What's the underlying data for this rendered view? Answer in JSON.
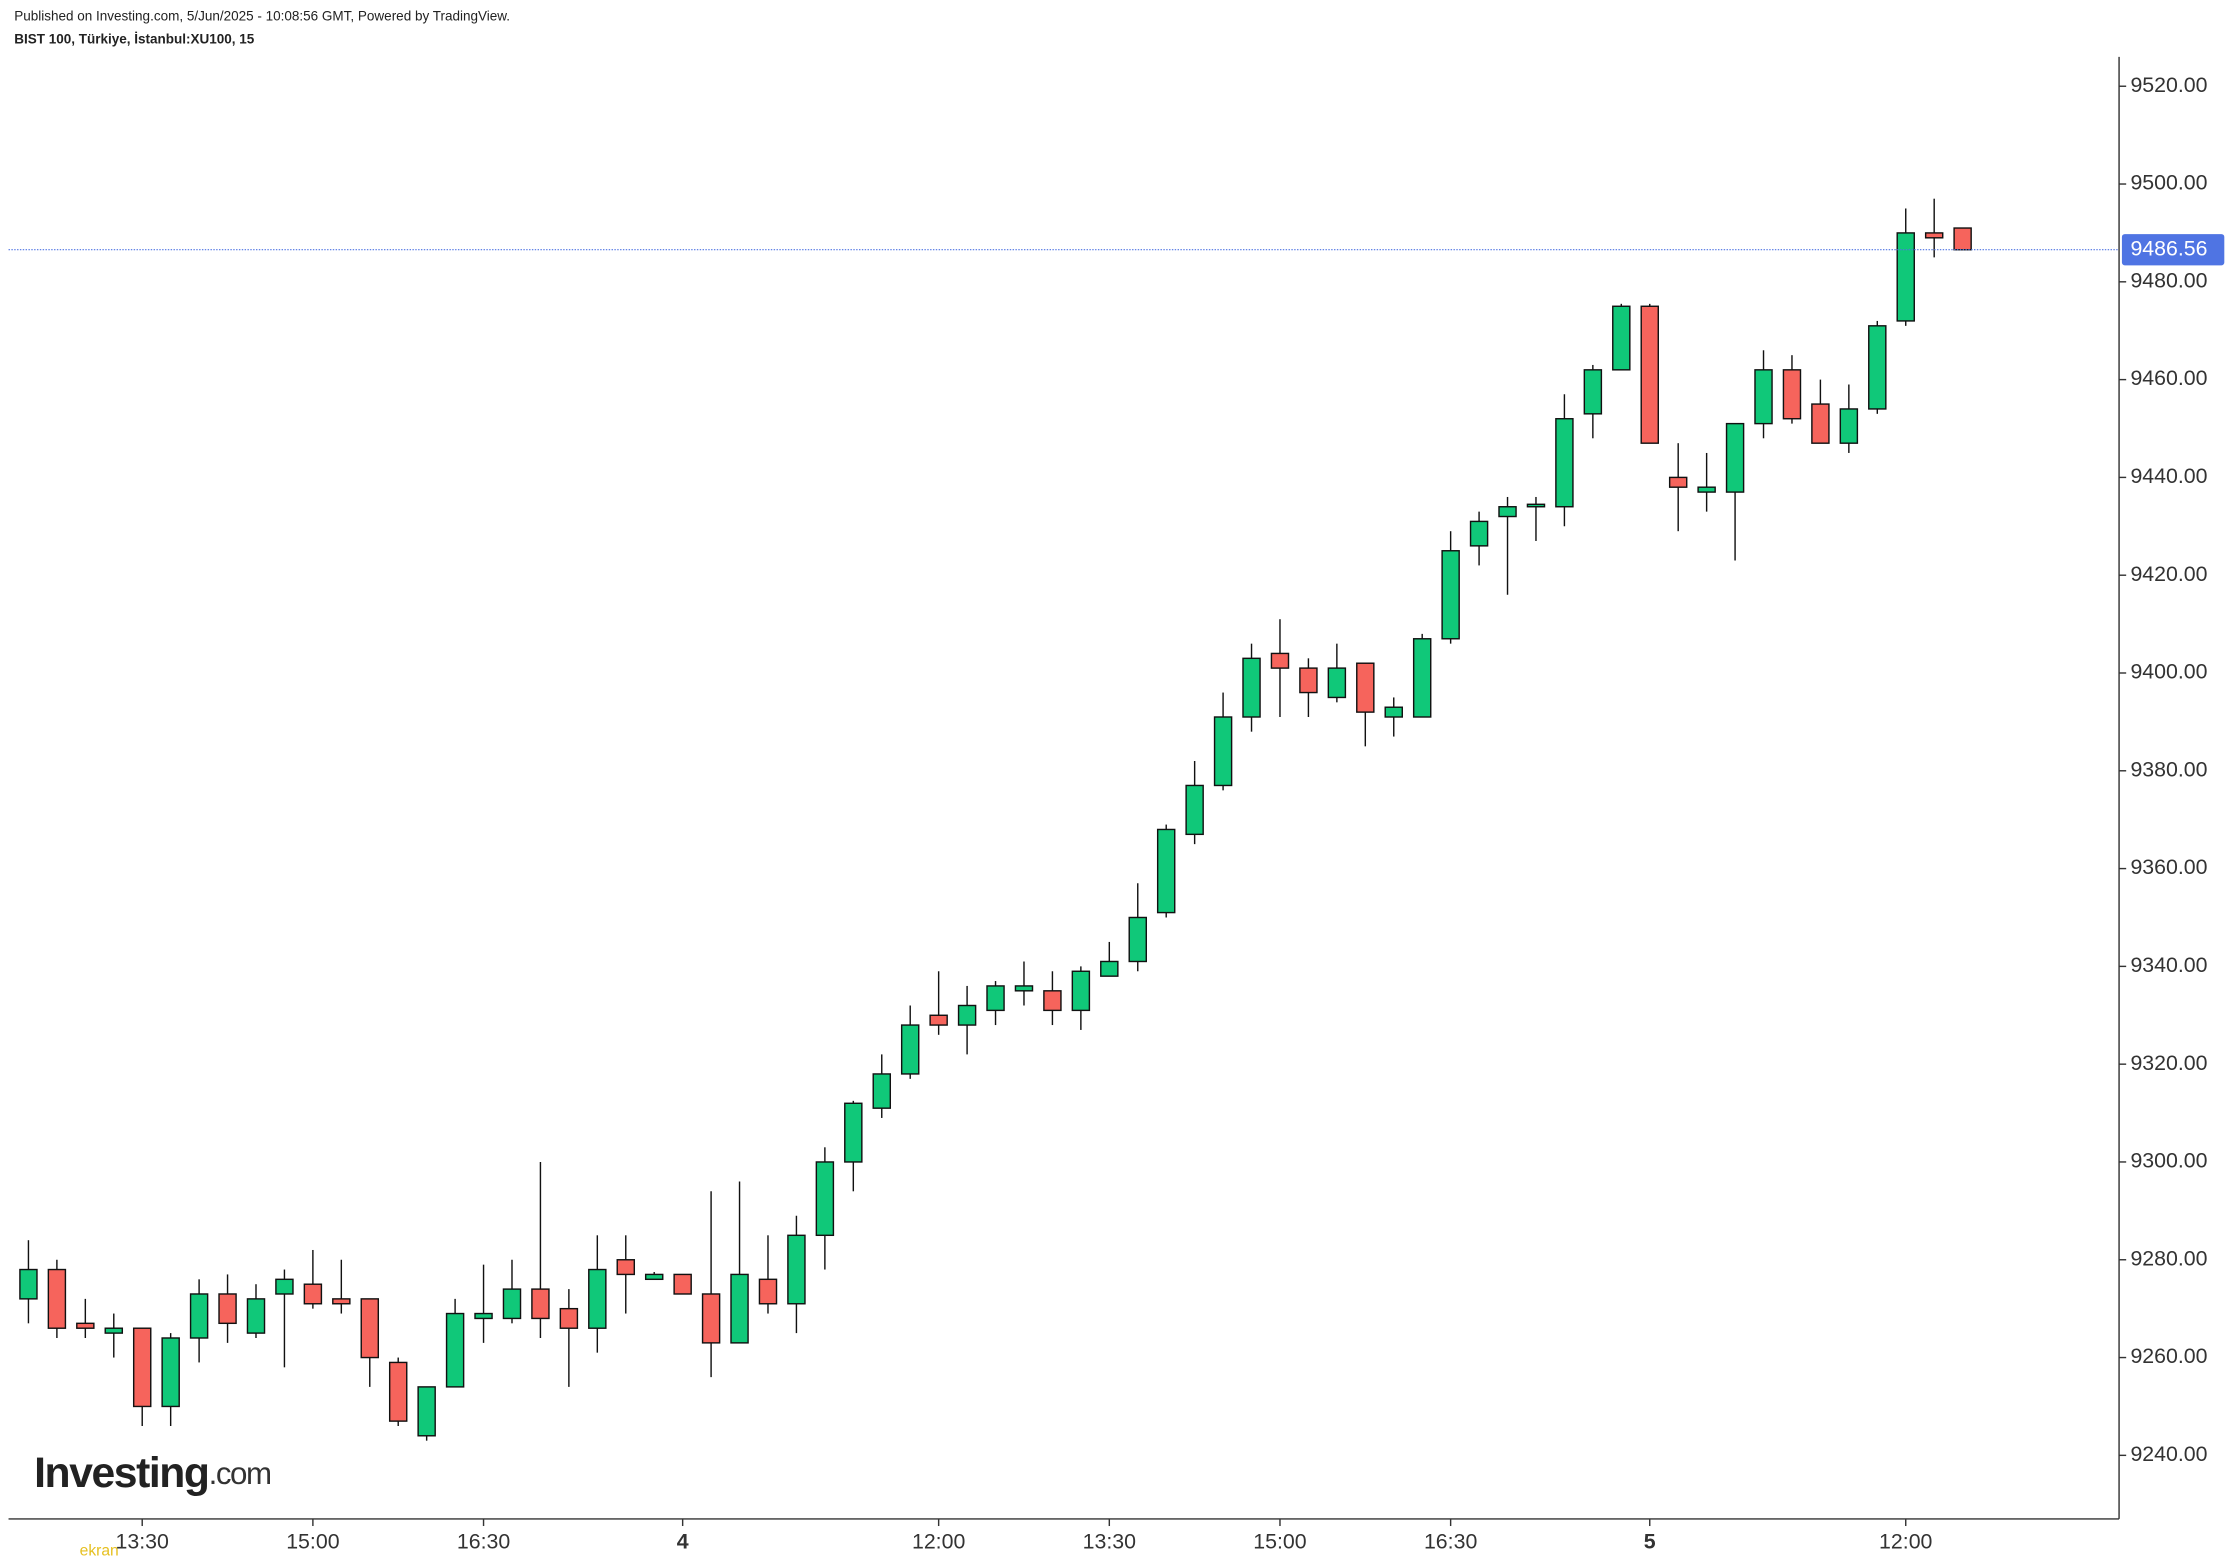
{
  "chart_data": {
    "type": "candlestick",
    "header": "Published on Investing.com, 5/Jun/2025 - 10:08:56 GMT, Powered by TradingView.",
    "symbol": "BIST 100, Türkiye, İstanbul:XU100, 15",
    "logo": "Investing",
    "logo_suffix": ".com",
    "watermark": "ekran",
    "categories": [
      null,
      null,
      null,
      null,
      "13:30",
      null,
      null,
      null,
      null,
      null,
      "15:00",
      null,
      null,
      null,
      null,
      null,
      "16:30",
      null,
      null,
      null,
      null,
      null,
      null,
      "4",
      null,
      null,
      null,
      null,
      null,
      null,
      null,
      null,
      "12:00",
      null,
      null,
      null,
      null,
      null,
      "13:30",
      null,
      null,
      null,
      null,
      null,
      "15:00",
      null,
      null,
      null,
      null,
      null,
      "16:30",
      null,
      null,
      null,
      null,
      null,
      null,
      "5",
      null,
      null,
      null,
      null,
      null,
      null,
      null,
      null,
      "12:00",
      null,
      null
    ],
    "open": [
      9272,
      9278,
      9267,
      9265,
      9266,
      9250,
      9264,
      9273,
      9265,
      9273,
      9275,
      9272,
      9272,
      9259,
      9244,
      9254,
      9268,
      9268,
      9274,
      9270,
      9266,
      9280,
      9276,
      9277,
      9273,
      9263,
      9276,
      9271,
      9285,
      9300,
      9311,
      9318,
      9330,
      9328,
      9331,
      9335,
      9335,
      9331,
      9338,
      9341,
      9351,
      9367,
      9377,
      9391,
      9404,
      9401,
      9395,
      9402,
      9391,
      9391,
      9407,
      9426,
      9432,
      9434,
      9434,
      9453,
      9462,
      9475,
      9440,
      9437,
      9437,
      9451,
      9462,
      9455,
      9447,
      9454,
      9472,
      9490,
      9491
    ],
    "high": [
      9284,
      9280,
      9272,
      9269,
      9266,
      9265,
      9276,
      9277,
      9275,
      9278,
      9282,
      9280,
      9272,
      9260,
      9254,
      9272,
      9279,
      9280,
      9300,
      9274,
      9285,
      9285,
      9277.5,
      9277,
      9294,
      9296,
      9285,
      9289,
      9303,
      9312.5,
      9322,
      9332,
      9339,
      9336,
      9337,
      9341,
      9339,
      9340,
      9345,
      9357,
      9369,
      9382,
      9396,
      9406,
      9411,
      9403,
      9406,
      9402,
      9395,
      9408,
      9429,
      9433,
      9436,
      9436,
      9457,
      9463,
      9475.5,
      9475.5,
      9447,
      9445,
      9451,
      9466,
      9465,
      9460,
      9459,
      9472,
      9495,
      9497,
      9491
    ],
    "low": [
      9267,
      9264,
      9264,
      9260,
      9246,
      9246,
      9259,
      9263,
      9264,
      9258,
      9270,
      9269,
      9254,
      9246,
      9243,
      9254,
      9263,
      9267,
      9264,
      9254,
      9261,
      9269,
      9276,
      9273,
      9256,
      9263,
      9269,
      9265,
      9278,
      9294,
      9309,
      9317,
      9326,
      9322,
      9328,
      9332,
      9328,
      9327,
      9338,
      9339,
      9350,
      9365,
      9376,
      9388,
      9391,
      9391,
      9394,
      9385,
      9387,
      9391,
      9406,
      9422,
      9416,
      9427,
      9430,
      9448,
      9462,
      9447,
      9429,
      9433,
      9423,
      9448,
      9451,
      9447,
      9445,
      9453,
      9471,
      9485,
      9486.56
    ],
    "close": [
      9278,
      9266,
      9266,
      9266,
      9250,
      9264,
      9273,
      9267,
      9272,
      9276,
      9271,
      9271,
      9260,
      9247,
      9254,
      9269,
      9269,
      9274,
      9268,
      9266,
      9278,
      9277,
      9277,
      9273,
      9263,
      9277,
      9271,
      9285,
      9300,
      9312,
      9318,
      9328,
      9328,
      9332,
      9336,
      9336,
      9331,
      9339,
      9341,
      9350,
      9368,
      9377,
      9391,
      9403,
      9401,
      9396,
      9401,
      9392,
      9393,
      9407,
      9425,
      9431,
      9434,
      9434.5,
      9452,
      9462,
      9475,
      9447,
      9438,
      9438,
      9451,
      9462,
      9452,
      9447,
      9454,
      9471,
      9490,
      9489,
      9486.56
    ],
    "up_color": "#10c879",
    "down_color": "#f6645c",
    "last_price": 9486.56,
    "last_price_color": "#4f74e3",
    "ylim": [
      9227,
      9526
    ],
    "yticks": [
      {
        "value": 9240,
        "label": "9240.00"
      },
      {
        "value": 9260,
        "label": "9260.00"
      },
      {
        "value": 9280,
        "label": "9280.00"
      },
      {
        "value": 9300,
        "label": "9300.00"
      },
      {
        "value": 9320,
        "label": "9320.00"
      },
      {
        "value": 9340,
        "label": "9340.00"
      },
      {
        "value": 9360,
        "label": "9360.00"
      },
      {
        "value": 9380,
        "label": "9380.00"
      },
      {
        "value": 9400,
        "label": "9400.00"
      },
      {
        "value": 9420,
        "label": "9420.00"
      },
      {
        "value": 9440,
        "label": "9440.00"
      },
      {
        "value": 9460,
        "label": "9460.00"
      },
      {
        "value": 9480,
        "label": "9480.00"
      },
      {
        "value": 9500,
        "label": "9500.00"
      },
      {
        "value": 9520,
        "label": "9520.00"
      }
    ]
  }
}
